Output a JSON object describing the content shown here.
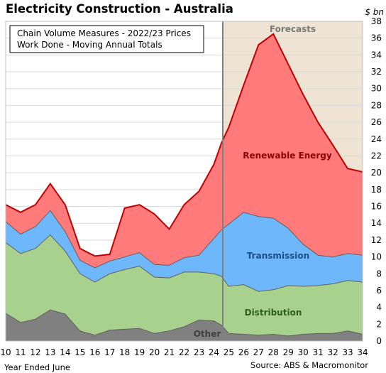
{
  "chart_data": {
    "type": "area",
    "stacked": true,
    "title": "Electricity Construction - Australia",
    "unit_label": "$ bn",
    "box_lines": [
      "Chain Volume Measures - 2022/23 Prices",
      "Work Done - Moving Annual Totals"
    ],
    "forecast_label": "Forecasts",
    "forecast_start_x": 24.6,
    "xlabel": "Year Ended June",
    "source": "Source: ABS & Macromonitor",
    "x_ticks": [
      "10",
      "11",
      "12",
      "13",
      "14",
      "15",
      "16",
      "17",
      "18",
      "19",
      "20",
      "21",
      "22",
      "23",
      "24",
      "25",
      "26",
      "27",
      "28",
      "29",
      "30",
      "31",
      "32",
      "33",
      "34"
    ],
    "y_ticks": [
      "0",
      "2",
      "4",
      "6",
      "8",
      "10",
      "12",
      "14",
      "16",
      "18",
      "20",
      "22",
      "24",
      "26",
      "28",
      "30",
      "32",
      "34",
      "36",
      "38"
    ],
    "ylim": [
      0,
      38
    ],
    "xlim": [
      10,
      34
    ],
    "x": [
      10,
      11,
      12,
      13,
      14,
      15,
      16,
      17,
      18,
      19,
      20,
      21,
      22,
      23,
      24,
      24.5,
      25,
      26,
      27,
      28,
      29,
      30,
      31,
      32,
      33,
      34
    ],
    "series": [
      {
        "name": "Other",
        "color": "#808080",
        "values": [
          3.3,
          2.2,
          2.6,
          3.7,
          3.2,
          1.2,
          0.7,
          1.3,
          1.4,
          1.5,
          0.9,
          1.2,
          1.7,
          2.5,
          2.4,
          1.9,
          0.9,
          0.8,
          0.7,
          0.8,
          0.6,
          0.8,
          0.9,
          0.9,
          1.2,
          0.8
        ]
      },
      {
        "name": "Distribution",
        "color": "#a9d18e",
        "values": [
          8.4,
          8.2,
          8.4,
          8.9,
          7.5,
          6.8,
          6.3,
          6.7,
          7.1,
          7.4,
          6.7,
          6.3,
          6.5,
          5.7,
          5.6,
          5.8,
          5.6,
          5.9,
          5.2,
          5.3,
          6.0,
          5.7,
          5.7,
          5.9,
          6.0,
          6.2
        ]
      },
      {
        "name": "Transmission",
        "color": "#6fb7fb",
        "values": [
          2.5,
          2.3,
          2.6,
          2.9,
          2.3,
          1.6,
          1.7,
          1.5,
          1.5,
          1.6,
          1.5,
          1.5,
          1.7,
          2.0,
          4.2,
          5.5,
          7.4,
          8.6,
          8.9,
          8.5,
          6.8,
          5.0,
          3.6,
          3.2,
          3.2,
          3.2
        ]
      },
      {
        "name": "Renewable Energy",
        "color": "#ff7b7b",
        "values": [
          2.0,
          2.6,
          2.6,
          3.2,
          3.2,
          1.4,
          1.4,
          0.8,
          5.8,
          5.7,
          6.0,
          4.3,
          6.3,
          7.6,
          8.8,
          10.3,
          11.5,
          15.1,
          20.4,
          21.9,
          19.5,
          17.8,
          15.8,
          13.3,
          10.1,
          9.9
        ]
      }
    ],
    "series_labels": [
      "Other",
      "Distribution",
      "Transmission",
      "Renewable Energy"
    ],
    "label_colors": {
      "Other": "#404040",
      "Distribution": "#2e5f1a",
      "Transmission": "#1f4e8c",
      "Renewable Energy": "#8b0000"
    },
    "colors": {
      "total_line": "#c00000",
      "boundary_line": "#606060",
      "forecast_fill": "#efe4d3",
      "grid": "#d9d9d9",
      "forecast_divider": "#808080"
    }
  }
}
